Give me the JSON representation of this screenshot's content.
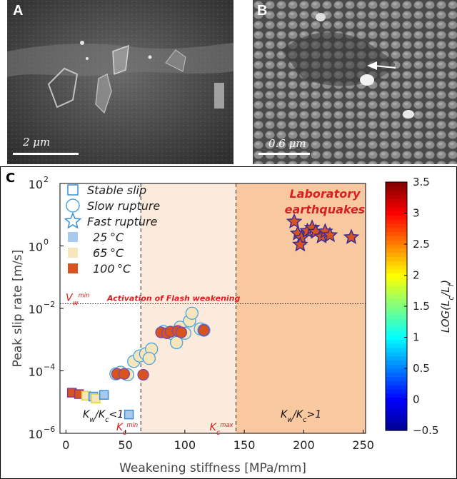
{
  "panels": {
    "a": {
      "letter": "A",
      "scale_label": "2 μm"
    },
    "b": {
      "letter": "B",
      "scale_label": "0.6 μm"
    },
    "c": {
      "letter": "C"
    }
  },
  "colors": {
    "T25": "#a9c8ee",
    "T65": "#f7e6bb",
    "T100": "#d9531e",
    "stable_edge": "#3b8fd6",
    "slow_edge": "#4aa3df",
    "fast_edge": "#3a2c8f",
    "region_mid": "#fcebdd",
    "region_high": "#f8c9a1",
    "annotation_red": "#d92020"
  },
  "chart_data": {
    "type": "scatter",
    "xlabel": "Weakening stiffness [MPa/mm]",
    "ylabel": "Peak slip rate [m/s]",
    "xlim": [
      -5,
      252
    ],
    "ylim_log10": [
      -6,
      2
    ],
    "xticks": [
      0,
      50,
      100,
      150,
      200,
      250
    ],
    "xtick_labels": [
      "0",
      "50",
      "100",
      "150",
      "200",
      "250"
    ],
    "yticks_log10": [
      -6,
      -4,
      -2,
      0,
      2
    ],
    "ytick_labels": [
      "10",
      "10",
      "10",
      "10",
      "10"
    ],
    "ytick_exponents": [
      "−6",
      "−4",
      "−2",
      "0",
      "2"
    ],
    "kc_min": 63,
    "kc_max": 143,
    "vw_min_log10": -1.85,
    "region_label": "Laboratory earthquakes",
    "vw_label": "V",
    "vw_label_sub": "w",
    "vw_label_sup": "min",
    "flash_label": "Activation of Flash weakening",
    "kc_min_label": "K",
    "kc_min_sub": "c",
    "kc_min_sup": "min",
    "kc_max_label": "K",
    "kc_max_sub": "c",
    "kc_max_sup": "max",
    "left_region_label": "K",
    "left_region_sub_a": "w",
    "left_region_mid": "/K",
    "left_region_sub_b": "c",
    "left_region_tail": "<1",
    "right_region_label": "K",
    "right_region_sub_a": "w",
    "right_region_mid": "/K",
    "right_region_sub_b": "c",
    "right_region_tail": ">1",
    "legend": {
      "placement": "top-left",
      "shapes": [
        "Stable slip",
        "Slow rupture",
        "Fast rupture"
      ],
      "temps": [
        {
          "label": "25",
          "unit": "°C",
          "color": "#a9c8ee"
        },
        {
          "label": "65",
          "unit": "°C",
          "color": "#f7e6bb"
        },
        {
          "label": "100",
          "unit": "°C",
          "color": "#d9531e"
        }
      ]
    },
    "colorbar": {
      "label": "LOG(L",
      "label_sub_a": "c",
      "label_mid": "/L",
      "label_sub_b": "f",
      "label_tail": ")",
      "range": [
        -0.5,
        3.5
      ],
      "ticks": [
        -0.5,
        0,
        0.5,
        1,
        1.5,
        2,
        2.5,
        3,
        3.5
      ],
      "tick_labels": [
        "−0.5",
        "0",
        "0.5",
        "1",
        "1.5",
        "2",
        "2.5",
        "3",
        "3.5"
      ]
    },
    "series": [
      {
        "name": "Stable slip",
        "marker": "square",
        "points": [
          {
            "x": 5,
            "y": 2e-05,
            "temp": "T100"
          },
          {
            "x": 11,
            "y": 1.8e-05,
            "temp": "T100"
          },
          {
            "x": 17,
            "y": 1.6e-05,
            "temp": "T65"
          },
          {
            "x": 23,
            "y": 1.5e-05,
            "temp": "T25"
          },
          {
            "x": 25,
            "y": 1.3e-05,
            "temp": "T65"
          },
          {
            "x": 32,
            "y": 1.7e-05,
            "temp": "T25"
          },
          {
            "x": 53,
            "y": 4e-06,
            "temp": "T25"
          }
        ]
      },
      {
        "name": "Slow rupture",
        "marker": "circle",
        "points": [
          {
            "x": 42,
            "y": 8e-05,
            "temp": "T65"
          },
          {
            "x": 46,
            "y": 9e-05,
            "temp": "T65"
          },
          {
            "x": 52,
            "y": 7.5e-05,
            "temp": "T65"
          },
          {
            "x": 57,
            "y": 0.0002,
            "temp": "T65"
          },
          {
            "x": 62,
            "y": 0.0003,
            "temp": "T65"
          },
          {
            "x": 67,
            "y": 0.00035,
            "temp": "T65"
          },
          {
            "x": 72,
            "y": 0.0005,
            "temp": "T65"
          },
          {
            "x": 70,
            "y": 0.00025,
            "temp": "T65"
          },
          {
            "x": 82,
            "y": 0.0018,
            "temp": "T65"
          },
          {
            "x": 90,
            "y": 0.0015,
            "temp": "T65"
          },
          {
            "x": 93,
            "y": 0.0008,
            "temp": "T65"
          },
          {
            "x": 96,
            "y": 0.0025,
            "temp": "T65"
          },
          {
            "x": 100,
            "y": 0.0016,
            "temp": "T65"
          },
          {
            "x": 104,
            "y": 0.004,
            "temp": "T65"
          },
          {
            "x": 106,
            "y": 0.007,
            "temp": "T65"
          },
          {
            "x": 113,
            "y": 0.0022,
            "temp": "T65"
          },
          {
            "x": 116,
            "y": 0.002,
            "temp": "T65"
          }
        ]
      },
      {
        "name": "Slow rupture",
        "marker": "circle",
        "points": [
          {
            "x": 43,
            "y": 8e-05,
            "temp": "T100"
          },
          {
            "x": 49,
            "y": 8e-05,
            "temp": "T100"
          },
          {
            "x": 65,
            "y": 7.5e-05,
            "temp": "T100"
          },
          {
            "x": 80,
            "y": 0.0017,
            "temp": "T100"
          },
          {
            "x": 85,
            "y": 0.0016,
            "temp": "T100"
          },
          {
            "x": 88,
            "y": 0.0018,
            "temp": "T100"
          },
          {
            "x": 94,
            "y": 0.0019,
            "temp": "T100"
          },
          {
            "x": 97,
            "y": 0.0017,
            "temp": "T100"
          },
          {
            "x": 116,
            "y": 0.002,
            "temp": "T100"
          }
        ]
      },
      {
        "name": "Fast rupture",
        "marker": "star",
        "points": [
          {
            "x": 192,
            "y": 6.0,
            "temp": "T100"
          },
          {
            "x": 195,
            "y": 2.5,
            "temp": "T100"
          },
          {
            "x": 198,
            "y": 1.8,
            "temp": "T100"
          },
          {
            "x": 203,
            "y": 3.0,
            "temp": "T100"
          },
          {
            "x": 207,
            "y": 3.8,
            "temp": "T100"
          },
          {
            "x": 210,
            "y": 2.8,
            "temp": "T100"
          },
          {
            "x": 215,
            "y": 2.0,
            "temp": "T100"
          },
          {
            "x": 218,
            "y": 2.9,
            "temp": "T100"
          },
          {
            "x": 222,
            "y": 2.2,
            "temp": "T100"
          },
          {
            "x": 240,
            "y": 1.9,
            "temp": "T100"
          },
          {
            "x": 197,
            "y": 1.1,
            "temp": "T100"
          }
        ]
      }
    ]
  }
}
